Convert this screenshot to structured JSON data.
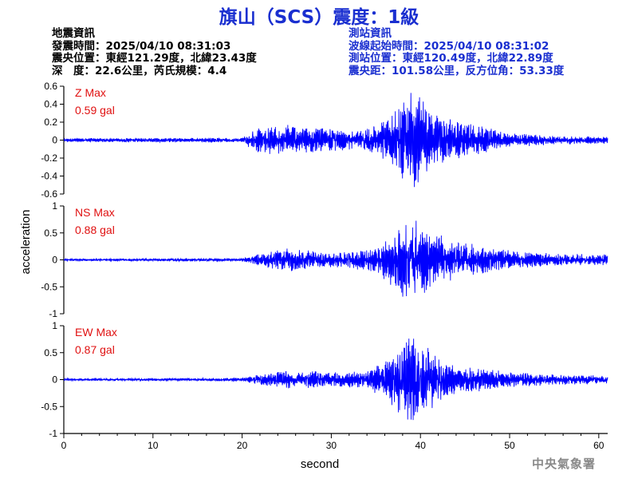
{
  "title": "旗山（SCS）震度：1級",
  "earthquake_info": {
    "heading": "地震資訊",
    "time": "發震時間：2025/04/10 08:31:03",
    "epicenter": "震央位置：東經121.29度，北緯23.43度",
    "depth_magnitude": "深　度：22.6公里，芮氏規模：4.4"
  },
  "station_info": {
    "heading": "測站資訊",
    "wave_start": "波線起始時間：2025/04/10 08:31:02",
    "location": "測站位置：東經120.49度，北緯22.89度",
    "distance_azimuth": "震央距：101.58公里，反方位角：53.33度"
  },
  "footer": "中央氣象署",
  "chart_data": {
    "type": "line",
    "xlabel": "second",
    "ylabel": "acceleration",
    "xlim": [
      0,
      61
    ],
    "xticks": [
      "0",
      "10",
      "20",
      "30",
      "40",
      "50",
      "60"
    ],
    "line_color": "#0000ff",
    "label_color": "#e01010",
    "panels": [
      {
        "name": "Z",
        "max_label": "Z Max",
        "max_value": "0.59 gal",
        "ylim": [
          -0.6,
          0.6
        ],
        "yticks": [
          "0.6",
          "0.4",
          "0.2",
          "0",
          "-0.2",
          "-0.4",
          "-0.6"
        ],
        "envelope": [
          [
            0,
            0.02
          ],
          [
            20,
            0.03
          ],
          [
            21.5,
            0.14
          ],
          [
            25,
            0.18
          ],
          [
            30,
            0.13
          ],
          [
            33,
            0.1
          ],
          [
            36.5,
            0.26
          ],
          [
            38,
            0.5
          ],
          [
            39,
            0.59
          ],
          [
            40,
            0.48
          ],
          [
            42,
            0.28
          ],
          [
            45,
            0.2
          ],
          [
            50,
            0.08
          ],
          [
            55,
            0.05
          ],
          [
            61,
            0.04
          ]
        ]
      },
      {
        "name": "NS",
        "max_label": "NS Max",
        "max_value": "0.88 gal",
        "ylim": [
          -1,
          1
        ],
        "yticks": [
          "1",
          "0.5",
          "0",
          "-0.5",
          "-1"
        ],
        "envelope": [
          [
            0,
            0.02
          ],
          [
            20,
            0.03
          ],
          [
            22,
            0.12
          ],
          [
            25,
            0.22
          ],
          [
            30,
            0.15
          ],
          [
            34,
            0.2
          ],
          [
            36.5,
            0.45
          ],
          [
            38,
            0.8
          ],
          [
            39,
            0.88
          ],
          [
            40,
            0.7
          ],
          [
            42,
            0.5
          ],
          [
            45,
            0.32
          ],
          [
            50,
            0.18
          ],
          [
            55,
            0.12
          ],
          [
            61,
            0.1
          ]
        ]
      },
      {
        "name": "EW",
        "max_label": "EW Max",
        "max_value": "0.87 gal",
        "ylim": [
          -1,
          1
        ],
        "yticks": [
          "1",
          "0.5",
          "0",
          "-0.5",
          "-1"
        ],
        "envelope": [
          [
            0,
            0.02
          ],
          [
            20,
            0.03
          ],
          [
            22,
            0.1
          ],
          [
            24,
            0.18
          ],
          [
            30,
            0.15
          ],
          [
            34,
            0.18
          ],
          [
            36.5,
            0.45
          ],
          [
            38,
            0.78
          ],
          [
            39,
            0.87
          ],
          [
            40,
            0.7
          ],
          [
            42,
            0.45
          ],
          [
            45,
            0.25
          ],
          [
            50,
            0.15
          ],
          [
            55,
            0.1
          ],
          [
            61,
            0.08
          ]
        ]
      }
    ]
  }
}
